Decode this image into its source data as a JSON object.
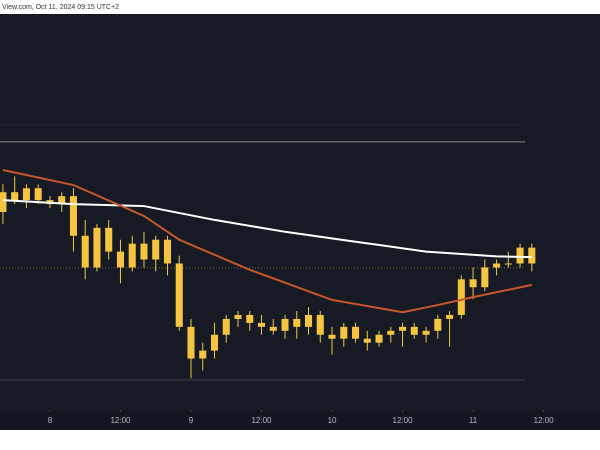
{
  "chart_data": {
    "type": "candlestick",
    "title": "View.com, Oct 11, 2024 09:15 UTC+2",
    "xlim": [
      -8.5,
      93.6
    ],
    "xticks": [
      {
        "value": 0,
        "label": "8"
      },
      {
        "value": 12,
        "label": "12:00"
      },
      {
        "value": 24,
        "label": "9"
      },
      {
        "value": 36,
        "label": "12:00"
      },
      {
        "value": 48,
        "label": "10"
      },
      {
        "value": 60,
        "label": "12:00"
      },
      {
        "value": 72,
        "label": "11"
      },
      {
        "value": 84,
        "label": "12:00"
      }
    ],
    "ylim": [
      0,
      100
    ],
    "color": "#f5c542",
    "x": [
      -8,
      -6,
      -4,
      -2,
      0,
      2,
      4,
      6,
      8,
      10,
      12,
      14,
      16,
      18,
      20,
      22,
      24,
      26,
      28,
      30,
      32,
      34,
      36,
      38,
      40,
      42,
      44,
      46,
      48,
      50,
      52,
      54,
      56,
      58,
      60,
      62,
      64,
      66,
      68,
      70,
      72,
      74,
      76,
      78,
      80,
      82
    ],
    "open": [
      50,
      55,
      53,
      56,
      53,
      52,
      54,
      44,
      36,
      46,
      40,
      36,
      42,
      38,
      43,
      37,
      21,
      13,
      15,
      19,
      23,
      24,
      22,
      21,
      20,
      23,
      21,
      24,
      19,
      18,
      21,
      18,
      17,
      19,
      20,
      21,
      19,
      20,
      23,
      24,
      33,
      31,
      36,
      37,
      37,
      41
    ],
    "high": [
      57,
      59,
      57,
      57,
      54,
      55,
      56,
      48,
      47,
      48,
      43,
      44,
      45,
      44,
      44,
      39,
      23,
      17,
      22,
      24,
      25,
      25,
      24,
      23,
      24,
      25,
      26,
      25,
      21,
      22,
      22,
      20,
      20,
      21,
      22,
      22,
      21,
      24,
      25,
      34,
      36,
      38,
      38,
      40,
      42,
      42
    ],
    "low": [
      47,
      52,
      51,
      52,
      51,
      50,
      40,
      33,
      35,
      38,
      32,
      35,
      36,
      35,
      34,
      20,
      8,
      10,
      13,
      17,
      21,
      20,
      19,
      19,
      18,
      18,
      19,
      17,
      14,
      16,
      17,
      15,
      16,
      17,
      16,
      18,
      17,
      18,
      16,
      23,
      28,
      30,
      34,
      36,
      36,
      35
    ],
    "close": [
      55,
      53,
      56,
      53,
      52,
      54,
      44,
      36,
      46,
      40,
      36,
      42,
      38,
      43,
      37,
      21,
      13,
      15,
      19,
      23,
      24,
      22,
      21,
      20,
      23,
      21,
      24,
      19,
      18,
      21,
      18,
      17,
      19,
      20,
      21,
      19,
      20,
      23,
      24,
      33,
      31,
      36,
      37,
      37,
      41,
      37
    ],
    "series": [
      {
        "color": "#ffffff",
        "x": [
          -8,
          4,
          16,
          28,
          40,
          52,
          64,
          76,
          82
        ],
        "values": [
          53,
          52,
          51.5,
          48,
          45,
          42.5,
          40,
          38.8,
          38.6
        ]
      },
      {
        "color": "#c8562a",
        "x": [
          -8,
          4,
          16,
          22,
          34,
          48,
          60,
          66,
          72,
          82
        ],
        "values": [
          60.6,
          56.8,
          49,
          43,
          35.4,
          27.8,
          24.7,
          26.5,
          28.5,
          31.6
        ]
      }
    ],
    "hlines": [
      {
        "value": 72,
        "color": "#3a3f4d",
        "style": "dotted"
      },
      {
        "value": 67.7,
        "color": "#8a8a8f",
        "style": "solid"
      },
      {
        "value": 35.9,
        "color": "#7a6a3a",
        "style": "dotted"
      },
      {
        "value": 7.6,
        "color": "#3a3f4d",
        "style": "solid"
      }
    ]
  }
}
